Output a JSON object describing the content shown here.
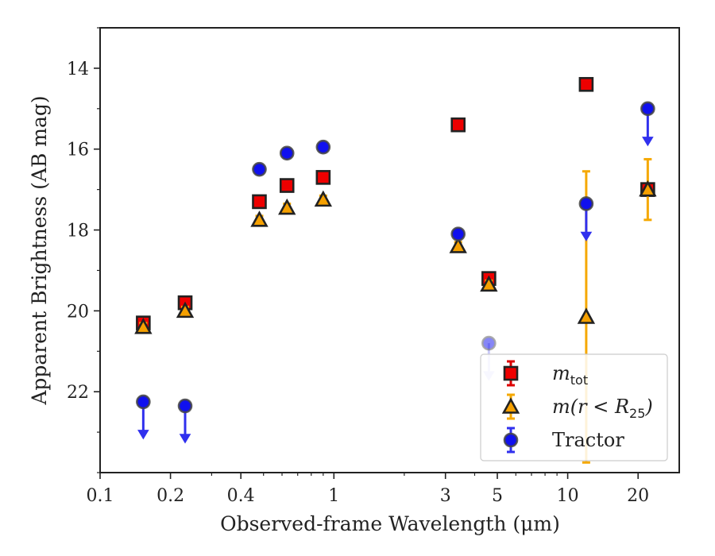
{
  "chart_data": {
    "type": "scatter",
    "xlabel": "Observed-frame Wavelength (μm)",
    "ylabel": "Apparent Brightness (AB mag)",
    "x_scale": "log",
    "xlim": [
      0.1,
      30
    ],
    "ylim": [
      24,
      13
    ],
    "y_inverted": true,
    "x_ticks": [
      0.1,
      0.2,
      0.4,
      1,
      3,
      5,
      10,
      20
    ],
    "x_tick_labels": [
      "0.1",
      "0.2",
      "0.4",
      "1",
      "3",
      "5",
      "10",
      "20"
    ],
    "y_ticks": [
      14,
      16,
      18,
      20,
      22
    ],
    "y_tick_labels": [
      "14",
      "16",
      "18",
      "20",
      "22"
    ],
    "legend_position": "lower-right",
    "series": [
      {
        "name": "m_tot",
        "legend_label": "m",
        "legend_sub": "tot",
        "marker": "square",
        "color": "#ee0000",
        "errcolor": "#dd0000",
        "points": [
          {
            "x": 0.153,
            "y": 20.3,
            "err": 0.12
          },
          {
            "x": 0.231,
            "y": 19.8,
            "err": 0.1
          },
          {
            "x": 0.48,
            "y": 17.3,
            "err": 0.0
          },
          {
            "x": 0.63,
            "y": 16.9,
            "err": 0.0
          },
          {
            "x": 0.9,
            "y": 16.7,
            "err": 0.0
          },
          {
            "x": 3.4,
            "y": 15.4,
            "err": 0.0
          },
          {
            "x": 4.6,
            "y": 19.2,
            "err": 0.1
          },
          {
            "x": 12.0,
            "y": 14.4,
            "err": 0.0
          },
          {
            "x": 22.0,
            "y": 17.0,
            "err": 0.0
          }
        ]
      },
      {
        "name": "m(r<R25)",
        "legend_label": "m(r < R",
        "legend_sub": "25",
        "legend_close": ")",
        "marker": "triangle",
        "color": "#f5a000",
        "errcolor": "#f5a800",
        "points": [
          {
            "x": 0.153,
            "y": 20.4,
            "err": 0.0
          },
          {
            "x": 0.231,
            "y": 20.0,
            "err": 0.0
          },
          {
            "x": 0.48,
            "y": 17.75,
            "err": 0.0
          },
          {
            "x": 0.63,
            "y": 17.45,
            "err": 0.0
          },
          {
            "x": 0.9,
            "y": 17.25,
            "err": 0.0
          },
          {
            "x": 3.4,
            "y": 18.4,
            "err": 0.0
          },
          {
            "x": 4.6,
            "y": 19.35,
            "err": 0.0
          },
          {
            "x": 12.0,
            "y": 20.15,
            "err": 3.6
          },
          {
            "x": 22.0,
            "y": 17.0,
            "err": 0.75
          }
        ]
      },
      {
        "name": "Tractor",
        "legend_label": "Tractor",
        "marker": "circle",
        "color": "#1010ee",
        "errcolor": "#3030ee",
        "points": [
          {
            "x": 0.153,
            "y": 22.25,
            "upper_limit": true
          },
          {
            "x": 0.231,
            "y": 22.35,
            "upper_limit": true
          },
          {
            "x": 0.48,
            "y": 16.5,
            "err": 0.0
          },
          {
            "x": 0.63,
            "y": 16.1,
            "err": 0.0
          },
          {
            "x": 0.9,
            "y": 15.95,
            "err": 0.0
          },
          {
            "x": 3.4,
            "y": 18.1,
            "err": 0.0
          },
          {
            "x": 4.6,
            "y": 20.8,
            "upper_limit": true,
            "faded": true
          },
          {
            "x": 12.0,
            "y": 17.35,
            "upper_limit": true
          },
          {
            "x": 22.0,
            "y": 15.0,
            "upper_limit": true
          }
        ]
      }
    ]
  }
}
